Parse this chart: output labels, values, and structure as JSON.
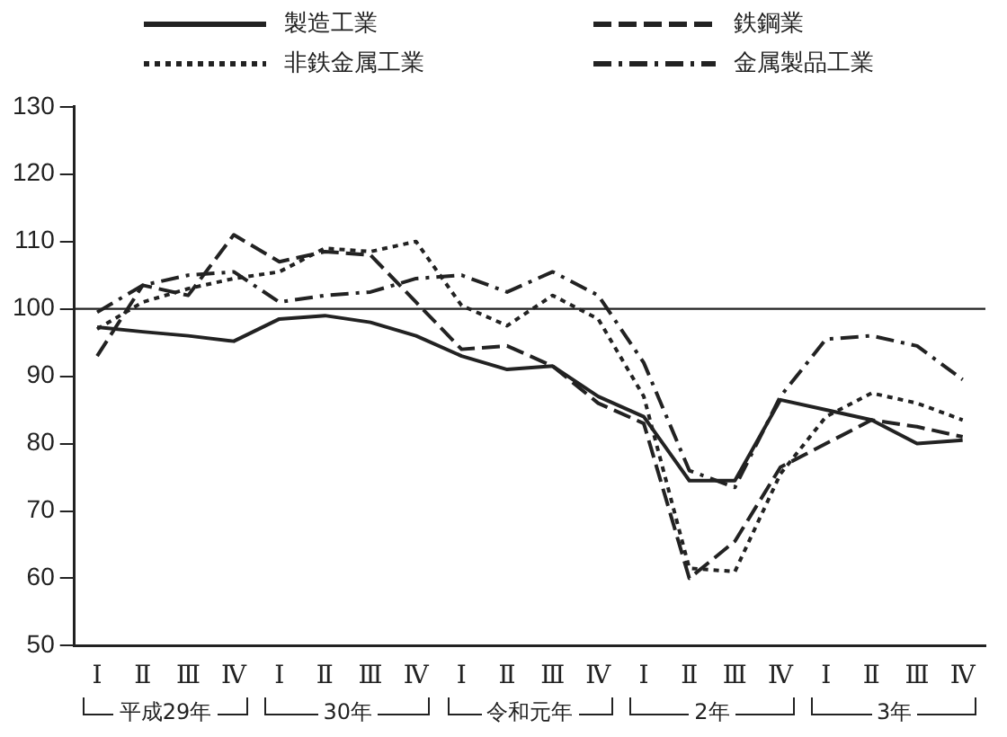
{
  "chart_data": {
    "type": "line",
    "categories": [
      "Ⅰ",
      "Ⅱ",
      "Ⅲ",
      "Ⅳ",
      "Ⅰ",
      "Ⅱ",
      "Ⅲ",
      "Ⅳ",
      "Ⅰ",
      "Ⅱ",
      "Ⅲ",
      "Ⅳ",
      "Ⅰ",
      "Ⅱ",
      "Ⅲ",
      "Ⅳ",
      "Ⅰ",
      "Ⅱ",
      "Ⅲ",
      "Ⅳ"
    ],
    "series": [
      {
        "name": "製造工業",
        "color": "#222222",
        "line_style": "solid",
        "values": [
          97.3,
          96.6,
          96,
          95.2,
          98.5,
          99,
          98,
          96,
          93,
          91,
          91.5,
          87,
          84,
          74.5,
          74.5,
          86.5,
          85,
          83.5,
          80,
          80.5
        ]
      },
      {
        "name": "鉄鋼業",
        "color": "#222222",
        "line_style": "dashed",
        "values": [
          93,
          103.5,
          102,
          111,
          107,
          108.5,
          108,
          101,
          94,
          94.5,
          91.5,
          86,
          83,
          60,
          65.5,
          76.5,
          80,
          83.5,
          82.5,
          81
        ]
      },
      {
        "name": "非鉄金属工業",
        "color": "#222222",
        "line_style": "dotted",
        "values": [
          97,
          101,
          103,
          104.5,
          105.5,
          109,
          108.5,
          110,
          100.5,
          97.5,
          102,
          98.5,
          87,
          61.5,
          61,
          75.5,
          84,
          87.5,
          86,
          83.5
        ]
      },
      {
        "name": "金属製品工業",
        "color": "#222222",
        "line_style": "dashdot",
        "values": [
          99.5,
          103.5,
          105,
          105.5,
          101,
          102,
          102.5,
          104.5,
          105,
          102.5,
          105.5,
          102,
          92,
          76,
          73.5,
          87,
          95.5,
          96,
          94.5,
          89.5
        ]
      }
    ],
    "ylim": [
      50,
      130
    ],
    "yticks": [
      50,
      60,
      70,
      80,
      90,
      100,
      110,
      120,
      130
    ],
    "ref_lines": [
      {
        "axis": "y",
        "value": 100,
        "color": "#222222"
      }
    ],
    "annotations": [
      "平成29年",
      "30年",
      "令和元年",
      "2年",
      "3年"
    ],
    "grid": false,
    "legend": "top",
    "marker": "none"
  }
}
